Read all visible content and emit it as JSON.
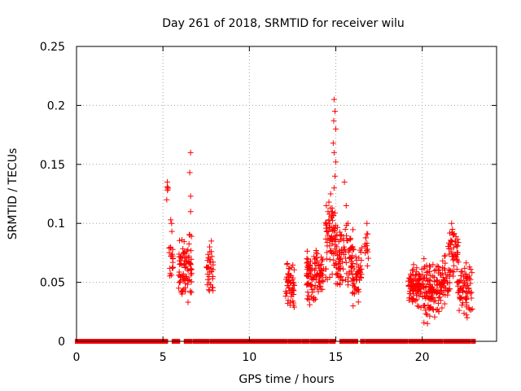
{
  "chart_data": {
    "type": "scatter",
    "title": "Day 261 of 2018, SRMTID for receiver wilu",
    "xlabel": "GPS time / hours",
    "ylabel": "SRMTID / TECUs",
    "xlim": [
      0,
      24.3
    ],
    "ylim": [
      0,
      0.25
    ],
    "x_ticks": [
      0,
      5,
      10,
      15,
      20
    ],
    "y_ticks": [
      0,
      0.05,
      0.1,
      0.15,
      0.2,
      0.25
    ],
    "x_tick_labels": [
      "0",
      "5",
      "10",
      "15",
      "20"
    ],
    "y_tick_labels": [
      "0",
      "0.05",
      "0.1",
      "0.15",
      "0.2",
      "0.25"
    ],
    "grid": true,
    "marker": "+",
    "series": [
      {
        "name": "SRMTID",
        "color": "#ff0000",
        "zero_segments": [
          [
            0.0,
            5.0
          ],
          [
            5.1,
            5.2
          ],
          [
            5.6,
            5.9
          ],
          [
            6.3,
            6.6
          ],
          [
            6.8,
            7.6
          ],
          [
            7.8,
            12.1
          ],
          [
            12.3,
            12.9
          ],
          [
            13.1,
            13.4
          ],
          [
            13.6,
            14.5
          ],
          [
            14.7,
            14.9
          ],
          [
            15.3,
            15.6
          ],
          [
            15.7,
            16.2
          ],
          [
            16.5,
            16.6
          ],
          [
            16.8,
            19.1
          ],
          [
            19.3,
            19.6
          ],
          [
            19.7,
            19.9
          ],
          [
            20.0,
            20.1
          ],
          [
            20.2,
            20.4
          ],
          [
            20.5,
            20.8
          ],
          [
            20.9,
            21.1
          ],
          [
            21.3,
            21.5
          ],
          [
            21.6,
            22.0
          ],
          [
            22.1,
            22.5
          ],
          [
            22.6,
            22.7
          ],
          [
            22.9,
            23.0
          ]
        ],
        "clusters": [
          {
            "x_min": 5.2,
            "x_max": 5.3,
            "y_min": 0.12,
            "y_max": 0.135,
            "n": 4
          },
          {
            "x_min": 5.3,
            "x_max": 5.6,
            "y_min": 0.045,
            "y_max": 0.103,
            "n": 20
          },
          {
            "x_min": 5.9,
            "x_max": 6.7,
            "y_min": 0.03,
            "y_max": 0.092,
            "n": 90
          },
          {
            "x_min": 7.5,
            "x_max": 7.9,
            "y_min": 0.035,
            "y_max": 0.085,
            "n": 35
          },
          {
            "x_min": 12.1,
            "x_max": 12.6,
            "y_min": 0.027,
            "y_max": 0.07,
            "n": 55
          },
          {
            "x_min": 13.3,
            "x_max": 14.3,
            "y_min": 0.03,
            "y_max": 0.08,
            "n": 110
          },
          {
            "x_min": 14.4,
            "x_max": 15.0,
            "y_min": 0.05,
            "y_max": 0.125,
            "n": 70
          },
          {
            "x_min": 15.0,
            "x_max": 16.0,
            "y_min": 0.045,
            "y_max": 0.1,
            "n": 90
          },
          {
            "x_min": 15.9,
            "x_max": 16.5,
            "y_min": 0.03,
            "y_max": 0.08,
            "n": 55
          },
          {
            "x_min": 16.6,
            "x_max": 16.9,
            "y_min": 0.06,
            "y_max": 0.1,
            "n": 14
          },
          {
            "x_min": 19.2,
            "x_max": 20.0,
            "y_min": 0.027,
            "y_max": 0.065,
            "n": 90
          },
          {
            "x_min": 20.0,
            "x_max": 21.0,
            "y_min": 0.015,
            "y_max": 0.07,
            "n": 110
          },
          {
            "x_min": 21.0,
            "x_max": 21.6,
            "y_min": 0.025,
            "y_max": 0.075,
            "n": 60
          },
          {
            "x_min": 21.5,
            "x_max": 22.1,
            "y_min": 0.05,
            "y_max": 0.1,
            "n": 45
          },
          {
            "x_min": 22.0,
            "x_max": 22.9,
            "y_min": 0.02,
            "y_max": 0.07,
            "n": 75
          }
        ],
        "points": [
          [
            5.25,
            0.135
          ],
          [
            5.22,
            0.12
          ],
          [
            5.45,
            0.103
          ],
          [
            5.5,
            0.1
          ],
          [
            6.6,
            0.16
          ],
          [
            6.55,
            0.143
          ],
          [
            6.6,
            0.123
          ],
          [
            6.6,
            0.11
          ],
          [
            6.55,
            0.09
          ],
          [
            7.8,
            0.085
          ],
          [
            7.7,
            0.08
          ],
          [
            14.9,
            0.205
          ],
          [
            14.95,
            0.195
          ],
          [
            14.88,
            0.187
          ],
          [
            15.0,
            0.18
          ],
          [
            14.85,
            0.168
          ],
          [
            14.9,
            0.16
          ],
          [
            15.0,
            0.152
          ],
          [
            14.95,
            0.14
          ],
          [
            14.9,
            0.13
          ],
          [
            14.7,
            0.125
          ],
          [
            14.6,
            0.118
          ],
          [
            14.55,
            0.11
          ],
          [
            14.6,
            0.103
          ],
          [
            14.65,
            0.1
          ],
          [
            15.5,
            0.135
          ],
          [
            15.6,
            0.115
          ],
          [
            15.7,
            0.1
          ],
          [
            15.55,
            0.095
          ],
          [
            15.3,
            0.09
          ],
          [
            16.0,
            0.03
          ],
          [
            16.8,
            0.1
          ],
          [
            21.7,
            0.1
          ],
          [
            21.75,
            0.095
          ],
          [
            21.8,
            0.09
          ],
          [
            21.7,
            0.085
          ],
          [
            21.9,
            0.085
          ],
          [
            20.3,
            0.015
          ],
          [
            22.6,
            0.02
          ],
          [
            20.1,
            0.07
          ],
          [
            19.5,
            0.065
          ]
        ]
      }
    ]
  }
}
